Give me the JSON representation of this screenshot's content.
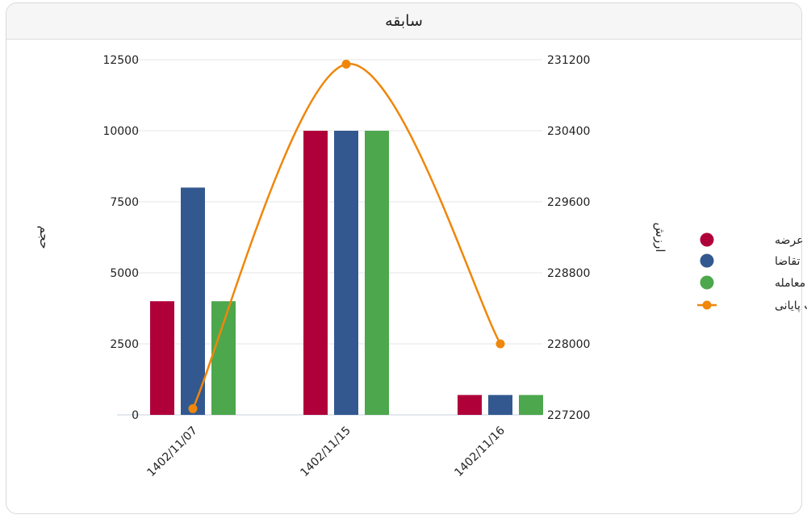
{
  "card": {
    "title": "سابقه"
  },
  "chart_data": {
    "type": "bar",
    "categories": [
      "1402/11/07",
      "1402/11/15",
      "1402/11/16"
    ],
    "series": [
      {
        "name": "عرضه",
        "type": "bar",
        "axis": "left",
        "color": "#b0003a",
        "values": [
          4000,
          10000,
          700
        ]
      },
      {
        "name": "تقاضا",
        "type": "bar",
        "axis": "left",
        "color": "#33588f",
        "values": [
          8000,
          10000,
          700
        ]
      },
      {
        "name": "معامله",
        "type": "bar",
        "axis": "left",
        "color": "#4da74d",
        "values": [
          4000,
          10000,
          700
        ]
      },
      {
        "name": "قیمت پایانی",
        "type": "line",
        "axis": "right",
        "color": "#f0860a",
        "values": [
          227270,
          231150,
          228000
        ]
      }
    ],
    "yleft": {
      "label": "حجم",
      "ylim": [
        0,
        12500
      ],
      "ticks": [
        "12500",
        "10000",
        "7500",
        "5000",
        "2500",
        "0"
      ]
    },
    "yright": {
      "label": "ارزش",
      "ylim": [
        227200,
        231200
      ],
      "ticks": [
        "231200",
        "230400",
        "229600",
        "228800",
        "228000",
        "227200"
      ]
    },
    "grid": true,
    "legend": "right"
  }
}
